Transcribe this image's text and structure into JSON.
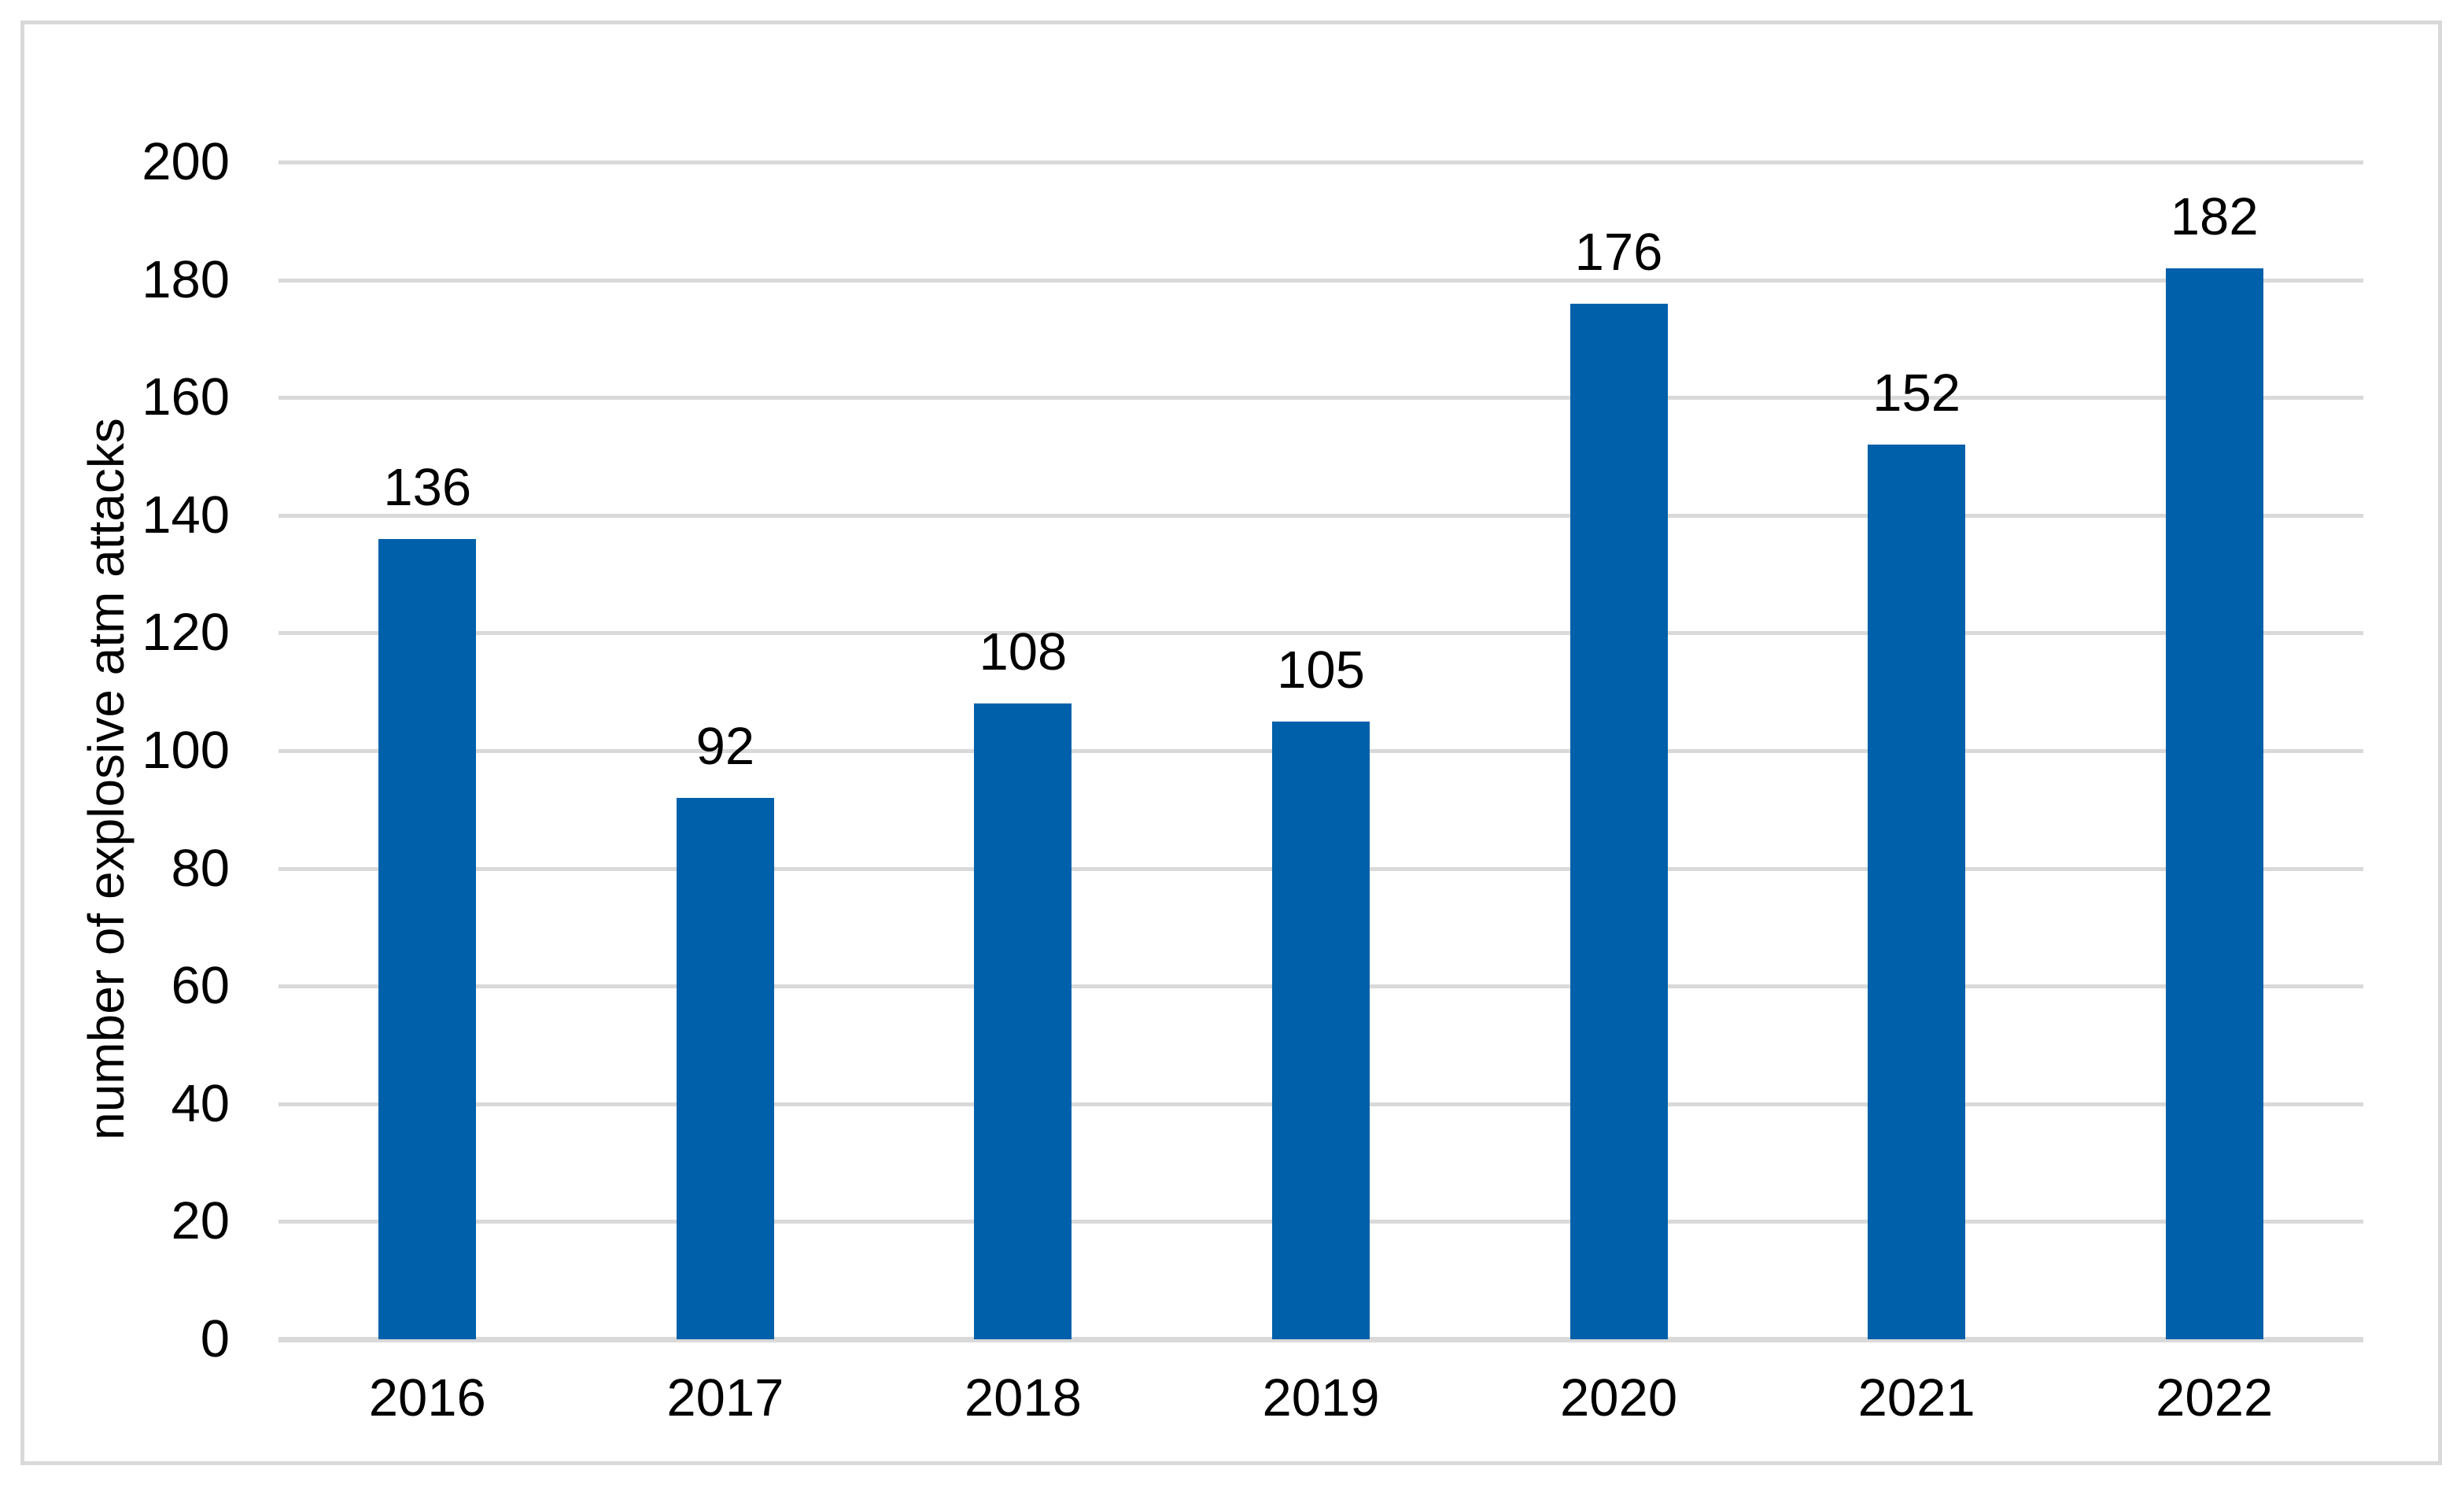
{
  "chart_data": {
    "type": "bar",
    "categories": [
      "2016",
      "2017",
      "2018",
      "2019",
      "2020",
      "2021",
      "2022"
    ],
    "values": [
      136,
      92,
      108,
      105,
      176,
      152,
      182
    ],
    "data_labels": [
      "136",
      "92",
      "108",
      "105",
      "176",
      "152",
      "182"
    ],
    "title": "",
    "xlabel": "",
    "ylabel": "number of explosive atm attacks",
    "ylim": [
      0,
      200
    ],
    "yticks": [
      0,
      20,
      40,
      60,
      80,
      100,
      120,
      140,
      160,
      180,
      200
    ],
    "grid": true,
    "legend": false,
    "colors": {
      "bar": "#0060aa",
      "gridline": "#d9d9d9",
      "frame_border": "#d9d9d9",
      "text": "#000000",
      "background": "#ffffff"
    }
  }
}
